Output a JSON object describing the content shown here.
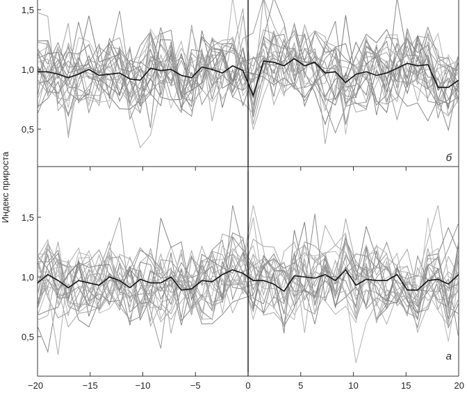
{
  "chart_data": {
    "type": "line",
    "ylabel": "Индекс прироста",
    "xlim": [
      -20,
      20
    ],
    "x_ticks": [
      {
        "value": -20,
        "label": "−20"
      },
      {
        "value": -15,
        "label": "−15"
      },
      {
        "value": -10,
        "label": "−10"
      },
      {
        "value": -5,
        "label": "−5"
      },
      {
        "value": 0,
        "label": "0"
      },
      {
        "value": 5,
        "label": "5"
      },
      {
        "value": 10,
        "label": "10"
      },
      {
        "value": 15,
        "label": "15"
      },
      {
        "value": 20,
        "label": "20"
      }
    ],
    "grid": false,
    "vertical_line_at": 0,
    "panels": [
      {
        "label": "б",
        "position": "top",
        "ylim": [
          0.2,
          1.6
        ],
        "y_ticks": [
          {
            "value": 0.5,
            "label": "0,5"
          },
          {
            "value": 1.0,
            "label": "1,0"
          },
          {
            "value": 1.5,
            "label": "1,5"
          }
        ],
        "mean_values": [
          0.98,
          0.98,
          0.96,
          0.93,
          0.96,
          1.0,
          0.95,
          0.96,
          0.97,
          0.92,
          0.91,
          1.01,
          0.99,
          1.0,
          0.95,
          0.93,
          1.02,
          1.0,
          0.97,
          1.03,
          0.99,
          0.78,
          1.07,
          1.06,
          1.03,
          1.09,
          1.03,
          1.06,
          0.97,
          0.98,
          0.89,
          0.96,
          0.98,
          0.95,
          0.97,
          1.01,
          1.05,
          1.03,
          1.04,
          0.85,
          0.85,
          0.91
        ]
      },
      {
        "label": "а",
        "position": "bottom",
        "ylim": [
          0.2,
          1.8
        ],
        "y_ticks": [
          {
            "value": 0.5,
            "label": "0,5"
          },
          {
            "value": 1.0,
            "label": "1,0"
          },
          {
            "value": 1.5,
            "label": "1,5"
          }
        ],
        "mean_values": [
          0.95,
          1.02,
          0.97,
          0.91,
          0.97,
          0.95,
          0.93,
          1.0,
          0.97,
          0.91,
          0.98,
          0.95,
          0.95,
          1.0,
          0.89,
          0.9,
          0.97,
          0.96,
          1.02,
          1.06,
          1.03,
          0.97,
          0.97,
          0.94,
          0.88,
          1.01,
          1.0,
          0.99,
          1.02,
          0.97,
          1.06,
          0.93,
          0.98,
          0.97,
          0.97,
          1.02,
          0.89,
          0.89,
          0.97,
          0.98,
          0.94,
          1.02
        ]
      }
    ]
  }
}
